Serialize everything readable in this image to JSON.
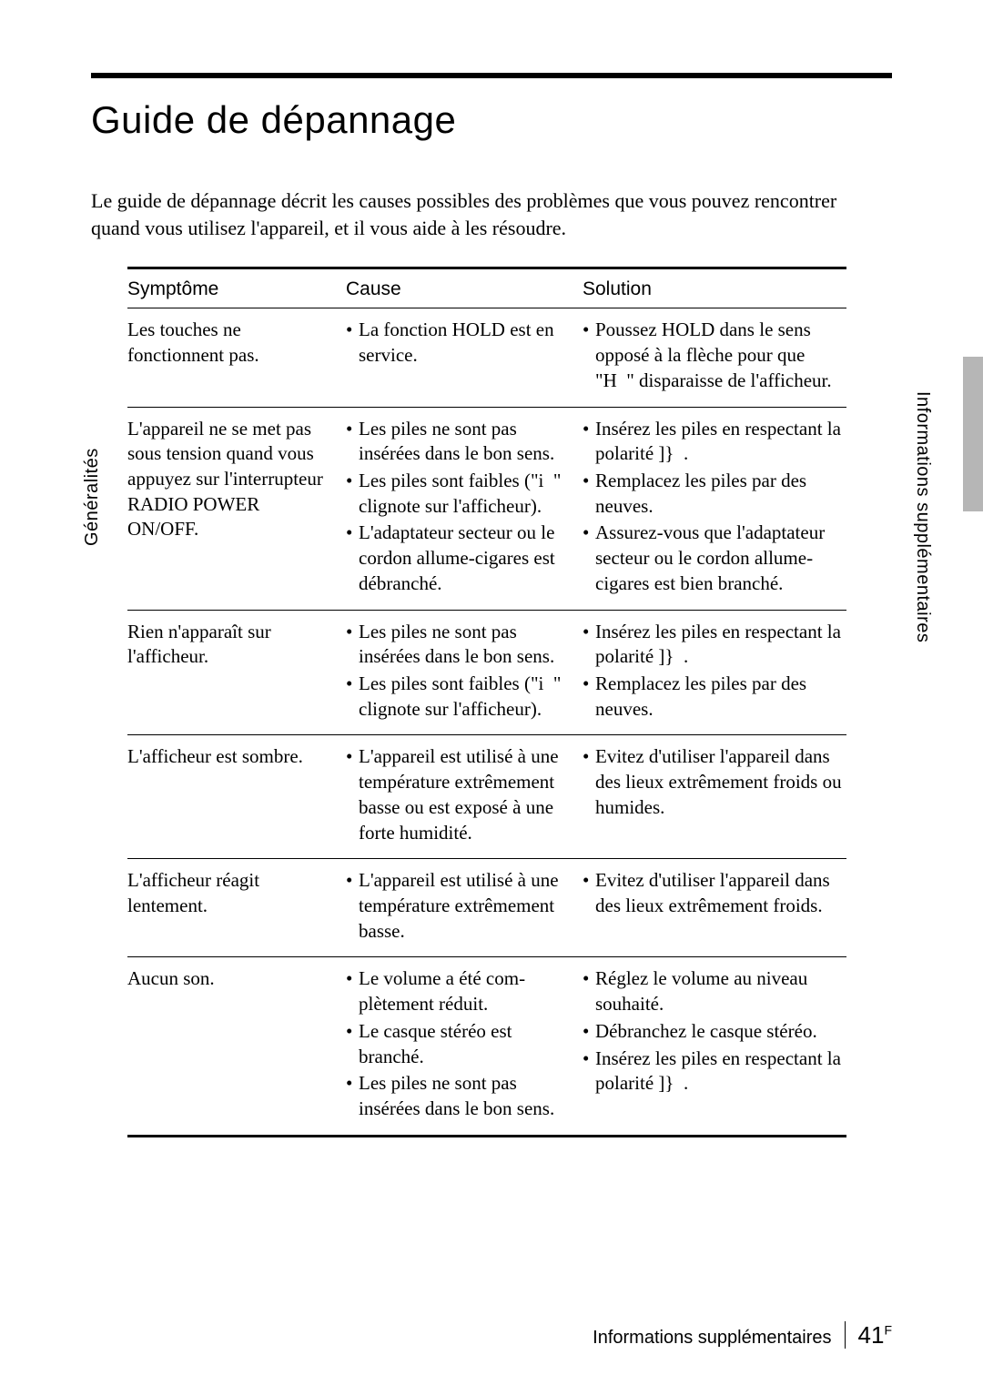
{
  "title": "Guide de dépannage",
  "intro": "Le guide de dépannage décrit les causes possibles des problèmes que vous pouvez rencontrer quand vous utilisez l'appareil, et il vous aide à les résoudre.",
  "side_left": "Généralités",
  "side_right": "Informations supplémentaires",
  "headers": {
    "symptom": "Symptôme",
    "cause": "Cause",
    "solution": "Solution"
  },
  "rows": [
    {
      "symptom": "Les touches ne fonctionnent pas.",
      "cause": [
        "La fonction HOLD est en service."
      ],
      "solution": [
        "Poussez HOLD dans le sens opposé à la flèche pour que \"H  \" disparaisse de l'afficheur."
      ]
    },
    {
      "symptom": "L'appareil ne se met pas sous tension quand vous appuyez sur l'interrupteur RADIO POWER ON/OFF.",
      "cause_block1": [
        "Les piles ne sont pas insérées dans le bon sens.",
        "Les piles sont faibles (\"i  \" clignote sur l'afficheur)."
      ],
      "solution_block1": [
        "Insérez les piles en respectant la polarité ]}  .",
        "Remplacez les piles par des neuves."
      ],
      "cause_block2": [
        "L'adaptateur secteur ou le cordon allume-cigares est débranché."
      ],
      "solution_block2": [
        "Assurez-vous que l'adaptateur secteur ou le cordon allume-cigares est bien branché."
      ]
    },
    {
      "symptom": "Rien n'apparaît sur l'afficheur.",
      "cause": [
        "Les piles ne sont pas insérées dans le bon sens.",
        "Les piles sont faibles (\"i  \" clignote sur l'afficheur)."
      ],
      "solution": [
        "Insérez les piles en respectant la polarité ]}  .",
        "Remplacez les piles par des neuves."
      ]
    },
    {
      "symptom": "L'afficheur est sombre.",
      "cause": [
        "L'appareil est utilisé à une température extrêmement basse ou est exposé à une forte humidité."
      ],
      "solution": [
        "Evitez d'utiliser l'appareil dans des lieux extrêmement froids ou humides."
      ]
    },
    {
      "symptom": "L'afficheur réagit lentement.",
      "cause": [
        "L'appareil est utilisé à une température extrêmement basse."
      ],
      "solution": [
        "Evitez d'utiliser l'appareil dans des lieux extrêmement froids."
      ]
    },
    {
      "symptom": "Aucun son.",
      "cause_block1": [
        "Le volume a été com-plètement réduit.",
        "Le casque stéréo est branché."
      ],
      "solution_block1": [
        "Réglez le volume au niveau souhaité.",
        "Débranchez le casque stéréo."
      ],
      "cause_block2": [
        "Les piles ne sont pas insérées dans le bon sens."
      ],
      "solution_block2": [
        "Insérez les piles en respectant la polarité ]}  ."
      ]
    }
  ],
  "footer": {
    "section": "Informations supplémentaires",
    "page": "41",
    "lang": "F"
  }
}
